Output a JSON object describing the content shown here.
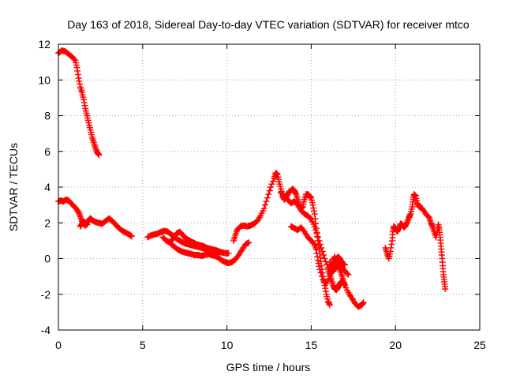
{
  "chart_data": {
    "type": "scatter",
    "title": "Day 163 of 2018, Sidereal Day-to-day VTEC variation (SDTVAR) for receiver mtco",
    "xlabel": "GPS time / hours",
    "ylabel": "SDTVAR / TECUs",
    "xlim": [
      0,
      25
    ],
    "ylim": [
      -4,
      12
    ],
    "xticks": [
      0,
      5,
      10,
      15,
      20,
      25
    ],
    "yticks": [
      -4,
      -2,
      0,
      2,
      4,
      6,
      8,
      10,
      12
    ],
    "grid": true,
    "marker": "+",
    "series_color": "#ff0000",
    "series": [
      {
        "name": "mtco",
        "segments": [
          [
            [
              0.0,
              11.5
            ],
            [
              0.2,
              11.65
            ],
            [
              0.4,
              11.6
            ],
            [
              0.6,
              11.45
            ],
            [
              0.8,
              11.3
            ],
            [
              1.0,
              11.1
            ],
            [
              1.1,
              10.7
            ],
            [
              1.2,
              10.1
            ],
            [
              1.3,
              9.6
            ],
            [
              1.4,
              9.3
            ],
            [
              1.5,
              8.9
            ],
            [
              1.6,
              8.4
            ],
            [
              1.7,
              8.0
            ],
            [
              1.8,
              7.6
            ],
            [
              1.9,
              7.2
            ],
            [
              2.0,
              6.8
            ],
            [
              2.1,
              6.5
            ],
            [
              2.2,
              6.2
            ],
            [
              2.3,
              5.95
            ],
            [
              2.4,
              5.8
            ]
          ],
          [
            [
              0.0,
              3.2
            ],
            [
              0.15,
              3.25
            ],
            [
              0.3,
              3.2
            ],
            [
              0.45,
              3.3
            ],
            [
              0.6,
              3.25
            ],
            [
              0.75,
              3.1
            ],
            [
              0.9,
              2.95
            ],
            [
              1.05,
              2.8
            ],
            [
              1.2,
              2.6
            ],
            [
              1.3,
              2.35
            ],
            [
              1.4,
              2.1
            ],
            [
              1.5,
              1.95
            ],
            [
              1.6,
              1.85
            ],
            [
              1.7,
              2.05
            ],
            [
              1.8,
              2.15
            ],
            [
              1.9,
              2.25
            ],
            [
              2.0,
              2.15
            ],
            [
              2.2,
              2.05
            ],
            [
              2.4,
              2.0
            ],
            [
              2.6,
              1.95
            ],
            [
              2.8,
              2.1
            ],
            [
              3.0,
              2.25
            ],
            [
              3.2,
              2.1
            ],
            [
              3.4,
              1.9
            ],
            [
              3.6,
              1.7
            ],
            [
              3.8,
              1.55
            ],
            [
              4.0,
              1.45
            ],
            [
              4.2,
              1.35
            ],
            [
              4.35,
              1.25
            ]
          ],
          [
            [
              1.3,
              1.8
            ],
            [
              1.4,
              1.95
            ],
            [
              1.5,
              2.05
            ],
            [
              1.6,
              2.0
            ],
            [
              1.7,
              1.9
            ]
          ],
          [
            [
              5.3,
              1.2
            ],
            [
              5.5,
              1.3
            ],
            [
              5.7,
              1.35
            ],
            [
              5.9,
              1.4
            ],
            [
              6.1,
              1.5
            ],
            [
              6.3,
              1.55
            ],
            [
              6.5,
              1.5
            ],
            [
              6.7,
              1.35
            ],
            [
              6.9,
              1.2
            ],
            [
              7.1,
              1.05
            ],
            [
              7.3,
              0.95
            ],
            [
              7.5,
              0.85
            ],
            [
              7.7,
              0.8
            ],
            [
              7.9,
              0.75
            ],
            [
              8.1,
              0.7
            ],
            [
              8.3,
              0.65
            ],
            [
              8.5,
              0.6
            ],
            [
              8.7,
              0.55
            ],
            [
              8.9,
              0.5
            ],
            [
              9.1,
              0.5
            ],
            [
              9.3,
              0.45
            ],
            [
              9.5,
              0.4
            ],
            [
              9.7,
              0.35
            ],
            [
              9.9,
              0.3
            ],
            [
              10.1,
              0.3
            ]
          ],
          [
            [
              6.2,
              1.2
            ],
            [
              6.4,
              1.0
            ],
            [
              6.6,
              0.9
            ],
            [
              6.8,
              1.1
            ],
            [
              7.0,
              1.4
            ],
            [
              7.2,
              1.5
            ],
            [
              7.4,
              1.3
            ],
            [
              7.6,
              1.1
            ],
            [
              7.8,
              1.0
            ],
            [
              8.0,
              0.9
            ],
            [
              8.2,
              0.8
            ],
            [
              8.4,
              0.75
            ],
            [
              8.6,
              0.7
            ],
            [
              8.8,
              0.6
            ],
            [
              9.0,
              0.55
            ],
            [
              9.2,
              0.5
            ],
            [
              9.4,
              0.45
            ],
            [
              9.6,
              0.35
            ]
          ],
          [
            [
              6.7,
              0.8
            ],
            [
              6.9,
              0.65
            ],
            [
              7.1,
              0.5
            ],
            [
              7.3,
              0.4
            ],
            [
              7.5,
              0.35
            ],
            [
              7.7,
              0.3
            ],
            [
              7.9,
              0.25
            ],
            [
              8.1,
              0.2
            ],
            [
              8.3,
              0.2
            ],
            [
              8.5,
              0.15
            ],
            [
              8.7,
              0.2
            ],
            [
              8.9,
              0.25
            ],
            [
              9.1,
              0.2
            ],
            [
              9.3,
              0.15
            ],
            [
              9.5,
              0.05
            ],
            [
              9.7,
              -0.1
            ],
            [
              9.9,
              -0.2
            ],
            [
              10.1,
              -0.25
            ],
            [
              10.3,
              -0.2
            ],
            [
              10.5,
              -0.05
            ],
            [
              10.7,
              0.2
            ],
            [
              10.9,
              0.5
            ],
            [
              11.1,
              0.8
            ],
            [
              11.3,
              0.9
            ]
          ],
          [
            [
              10.4,
              1.0
            ],
            [
              10.5,
              1.3
            ],
            [
              10.6,
              1.6
            ],
            [
              10.8,
              1.8
            ],
            [
              11.0,
              1.85
            ],
            [
              11.2,
              1.8
            ],
            [
              11.4,
              1.85
            ],
            [
              11.6,
              1.95
            ],
            [
              11.8,
              2.1
            ],
            [
              12.0,
              2.4
            ],
            [
              12.2,
              2.8
            ],
            [
              12.4,
              3.4
            ],
            [
              12.6,
              4.0
            ],
            [
              12.8,
              4.5
            ],
            [
              12.9,
              4.8
            ],
            [
              13.0,
              4.7
            ],
            [
              13.1,
              4.3
            ],
            [
              13.2,
              3.9
            ],
            [
              13.3,
              3.5
            ],
            [
              13.4,
              3.3
            ],
            [
              13.5,
              3.4
            ],
            [
              13.6,
              3.6
            ],
            [
              13.7,
              3.75
            ],
            [
              13.8,
              3.8
            ],
            [
              13.9,
              3.9
            ],
            [
              14.0,
              3.8
            ],
            [
              14.1,
              3.6
            ],
            [
              14.2,
              3.3
            ],
            [
              14.3,
              3.0
            ],
            [
              14.4,
              2.8
            ],
            [
              14.5,
              2.9
            ],
            [
              14.6,
              3.3
            ],
            [
              14.7,
              3.6
            ],
            [
              14.8,
              3.6
            ],
            [
              14.9,
              3.5
            ],
            [
              15.0,
              3.4
            ],
            [
              15.1,
              3.0
            ],
            [
              15.2,
              2.5
            ],
            [
              15.3,
              1.7
            ],
            [
              15.4,
              1.0
            ],
            [
              15.5,
              0.3
            ],
            [
              15.6,
              -0.4
            ],
            [
              15.7,
              -1.0
            ],
            [
              15.8,
              -1.5
            ],
            [
              15.9,
              -2.0
            ],
            [
              16.0,
              -2.4
            ],
            [
              16.1,
              -2.6
            ]
          ],
          [
            [
              13.2,
              3.7
            ],
            [
              13.4,
              3.5
            ],
            [
              13.6,
              3.3
            ],
            [
              13.8,
              3.1
            ],
            [
              14.0,
              3.2
            ],
            [
              14.2,
              3.0
            ],
            [
              14.4,
              2.7
            ],
            [
              14.6,
              2.5
            ],
            [
              14.8,
              2.4
            ],
            [
              15.0,
              2.2
            ],
            [
              15.2,
              1.8
            ],
            [
              15.4,
              1.2
            ],
            [
              15.6,
              0.6
            ],
            [
              15.8,
              0.0
            ],
            [
              16.0,
              -0.5
            ],
            [
              16.2,
              -0.8
            ],
            [
              16.4,
              -0.6
            ],
            [
              16.6,
              -0.4
            ],
            [
              16.8,
              -0.5
            ],
            [
              17.0,
              -0.7
            ],
            [
              17.2,
              -0.9
            ]
          ],
          [
            [
              13.8,
              1.8
            ],
            [
              14.0,
              1.7
            ],
            [
              14.2,
              1.6
            ],
            [
              14.4,
              1.75
            ],
            [
              14.6,
              1.5
            ],
            [
              14.8,
              1.2
            ],
            [
              15.0,
              1.0
            ],
            [
              15.2,
              0.8
            ],
            [
              15.3,
              0.5
            ],
            [
              15.4,
              -0.1
            ],
            [
              15.5,
              -0.6
            ],
            [
              15.7,
              -1.2
            ],
            [
              15.9,
              -1.4
            ],
            [
              16.1,
              -1.0
            ],
            [
              16.2,
              -0.5
            ],
            [
              16.3,
              -0.1
            ],
            [
              16.4,
              0.1
            ],
            [
              16.5,
              -0.2
            ],
            [
              16.6,
              -0.4
            ],
            [
              16.7,
              -0.6
            ],
            [
              16.8,
              -0.9
            ],
            [
              16.9,
              -1.2
            ],
            [
              17.0,
              -1.5
            ],
            [
              17.2,
              -1.9
            ],
            [
              17.4,
              -2.2
            ],
            [
              17.6,
              -2.5
            ],
            [
              17.8,
              -2.7
            ],
            [
              18.0,
              -2.6
            ],
            [
              18.1,
              -2.45
            ]
          ],
          [
            [
              16.0,
              -0.6
            ],
            [
              16.1,
              -0.9
            ],
            [
              16.2,
              -1.2
            ],
            [
              16.3,
              -1.5
            ],
            [
              16.4,
              -1.7
            ],
            [
              16.5,
              -1.75
            ],
            [
              16.6,
              -1.6
            ],
            [
              16.7,
              -1.4
            ],
            [
              16.8,
              -1.3
            ],
            [
              16.9,
              -1.35
            ],
            [
              17.0,
              -1.5
            ]
          ],
          [
            [
              16.1,
              -0.2
            ],
            [
              16.2,
              -0.5
            ],
            [
              16.3,
              -0.4
            ],
            [
              16.4,
              -0.2
            ],
            [
              16.5,
              0.0
            ],
            [
              16.6,
              0.1
            ],
            [
              16.7,
              0.0
            ],
            [
              16.8,
              -0.2
            ],
            [
              16.9,
              -0.3
            ],
            [
              17.0,
              -0.35
            ]
          ],
          [
            [
              19.4,
              0.6
            ],
            [
              19.5,
              0.3
            ],
            [
              19.6,
              0.0
            ],
            [
              19.7,
              0.4
            ],
            [
              19.8,
              1.0
            ],
            [
              19.85,
              1.5
            ],
            [
              19.9,
              1.8
            ],
            [
              20.0,
              1.7
            ],
            [
              20.1,
              1.5
            ],
            [
              20.2,
              1.7
            ],
            [
              20.3,
              1.95
            ],
            [
              20.4,
              1.9
            ],
            [
              20.5,
              1.75
            ],
            [
              20.6,
              1.85
            ],
            [
              20.7,
              2.05
            ],
            [
              20.8,
              2.3
            ],
            [
              20.9,
              2.5
            ],
            [
              21.0,
              2.9
            ],
            [
              21.05,
              3.3
            ],
            [
              21.1,
              3.6
            ],
            [
              21.2,
              3.5
            ],
            [
              21.3,
              3.1
            ],
            [
              21.4,
              2.9
            ],
            [
              21.6,
              2.8
            ],
            [
              21.8,
              2.5
            ],
            [
              22.0,
              2.3
            ],
            [
              22.1,
              2.0
            ],
            [
              22.2,
              1.8
            ],
            [
              22.3,
              1.5
            ],
            [
              22.4,
              1.2
            ],
            [
              22.5,
              1.6
            ],
            [
              22.55,
              1.9
            ],
            [
              22.6,
              1.6
            ],
            [
              22.65,
              1.2
            ],
            [
              22.7,
              0.7
            ],
            [
              22.75,
              0.2
            ],
            [
              22.8,
              -0.4
            ],
            [
              22.85,
              -0.9
            ],
            [
              22.9,
              -1.3
            ],
            [
              22.95,
              -1.7
            ]
          ]
        ]
      }
    ]
  }
}
